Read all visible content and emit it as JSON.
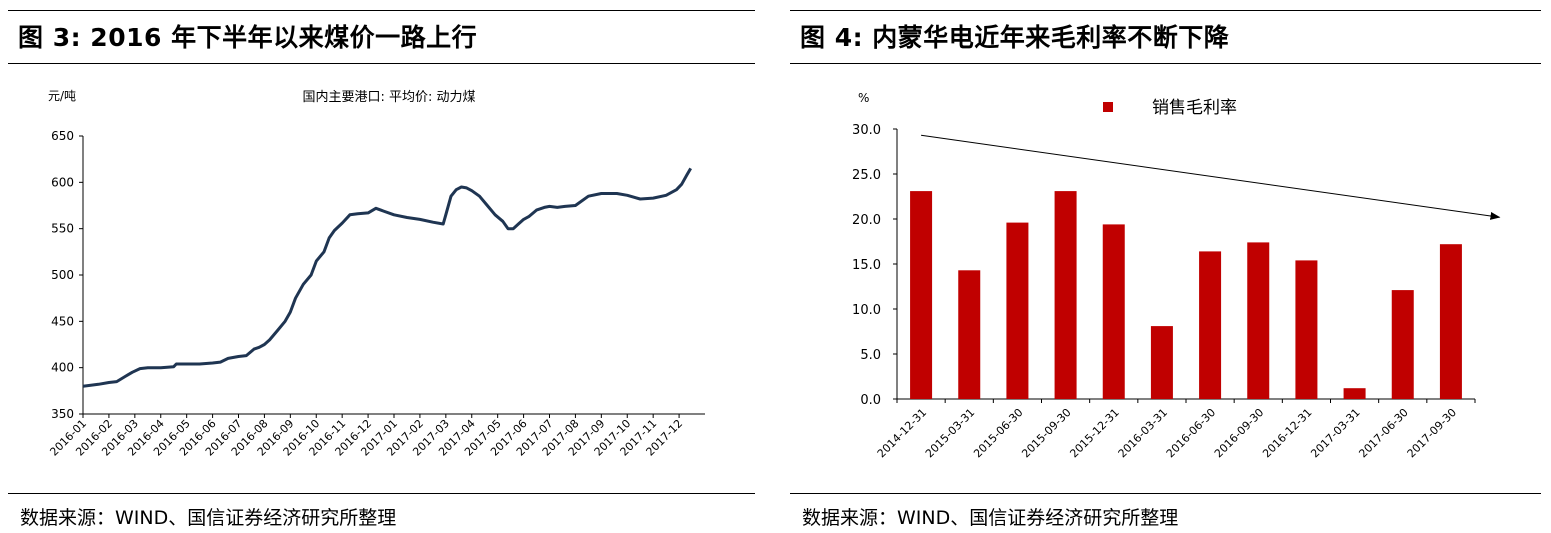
{
  "left_panel": {
    "figure_title": "图 3:  2016 年下半年以来煤价一路上行",
    "source": "数据来源：WIND、国信证券经济研究所整理"
  },
  "right_panel": {
    "figure_title": "图 4:  内蒙华电近年来毛利率不断下降",
    "source": "数据来源：WIND、国信证券经济研究所整理"
  },
  "colors": {
    "line": "#1f3552",
    "bar": "#c00000",
    "axis": "#000000"
  },
  "chart_data": [
    {
      "type": "line",
      "title": "国内主要港口: 平均价: 动力煤",
      "ylabel": "元/吨",
      "ylim": [
        350,
        650
      ],
      "yticks": [
        350,
        400,
        450,
        500,
        550,
        600,
        650
      ],
      "x_tick_labels": [
        "2016-01",
        "2016-02",
        "2016-03",
        "2016-04",
        "2016-05",
        "2016-06",
        "2016-07",
        "2016-08",
        "2016-09",
        "2016-10",
        "2016-11",
        "2016-12",
        "2017-01",
        "2017-02",
        "2017-03",
        "2017-04",
        "2017-05",
        "2017-06",
        "2017-07",
        "2017-08",
        "2017-09",
        "2017-10",
        "2017-11",
        "2017-12"
      ],
      "grid": false,
      "series": [
        {
          "x": [
            0,
            0.3,
            0.6,
            1.0,
            1.3,
            1.6,
            1.9,
            2.2,
            2.5,
            3.0,
            3.5,
            3.6,
            4.0,
            4.5,
            5.0,
            5.3,
            5.6,
            6.0,
            6.3,
            6.6,
            6.8,
            7.0,
            7.2,
            7.5,
            7.8,
            8.0,
            8.2,
            8.5,
            8.8,
            9.0,
            9.3,
            9.5,
            9.7,
            10.0,
            10.3,
            10.6,
            11.0,
            11.3,
            11.6,
            12.0,
            12.5,
            13.0,
            13.5,
            13.9,
            14.0,
            14.2,
            14.4,
            14.6,
            14.8,
            15.0,
            15.3,
            15.6,
            15.9,
            16.2,
            16.4,
            16.6,
            16.8,
            17.0,
            17.2,
            17.5,
            17.8,
            18.0,
            18.3,
            18.6,
            19.0,
            19.5,
            20.0,
            20.3,
            20.6,
            21.0,
            21.5,
            22.0,
            22.5,
            22.9,
            23.1,
            23.3,
            23.45
          ],
          "y": [
            380,
            381,
            382,
            384,
            385,
            390,
            395,
            399,
            400,
            400,
            401,
            404,
            404,
            404,
            405,
            406,
            410,
            412,
            413,
            420,
            422,
            425,
            430,
            440,
            450,
            460,
            475,
            490,
            500,
            515,
            525,
            540,
            548,
            556,
            565,
            566,
            567,
            572,
            569,
            565,
            562,
            560,
            557,
            555,
            565,
            585,
            592,
            595,
            594,
            591,
            585,
            575,
            565,
            558,
            550,
            550,
            555,
            560,
            563,
            570,
            573,
            574,
            573,
            574,
            575,
            585,
            588,
            588,
            588,
            586,
            582,
            583,
            586,
            592,
            598,
            608,
            615
          ]
        }
      ]
    },
    {
      "type": "bar",
      "title": "",
      "ylabel": "%",
      "ylim": [
        0,
        30
      ],
      "yticks": [
        "0.0",
        "5.0",
        "10.0",
        "15.0",
        "20.0",
        "25.0",
        "30.0"
      ],
      "grid": false,
      "legend": {
        "position": "top-center",
        "label": "销售毛利率"
      },
      "categories": [
        "2014-12-31",
        "2015-03-31",
        "2015-06-30",
        "2015-09-30",
        "2015-12-31",
        "2016-03-31",
        "2016-06-30",
        "2016-09-30",
        "2016-12-31",
        "2017-03-31",
        "2017-06-30",
        "2017-09-30"
      ],
      "series": [
        {
          "name": "销售毛利率",
          "values": [
            23.1,
            14.3,
            19.6,
            23.1,
            19.4,
            8.1,
            16.4,
            17.4,
            15.4,
            1.2,
            12.1,
            17.2
          ]
        }
      ],
      "annotations": [
        {
          "type": "arrow",
          "description": "downward trend arrow",
          "from": [
            0,
            29.3
          ],
          "to": [
            11.8,
            20.2
          ]
        }
      ]
    }
  ]
}
